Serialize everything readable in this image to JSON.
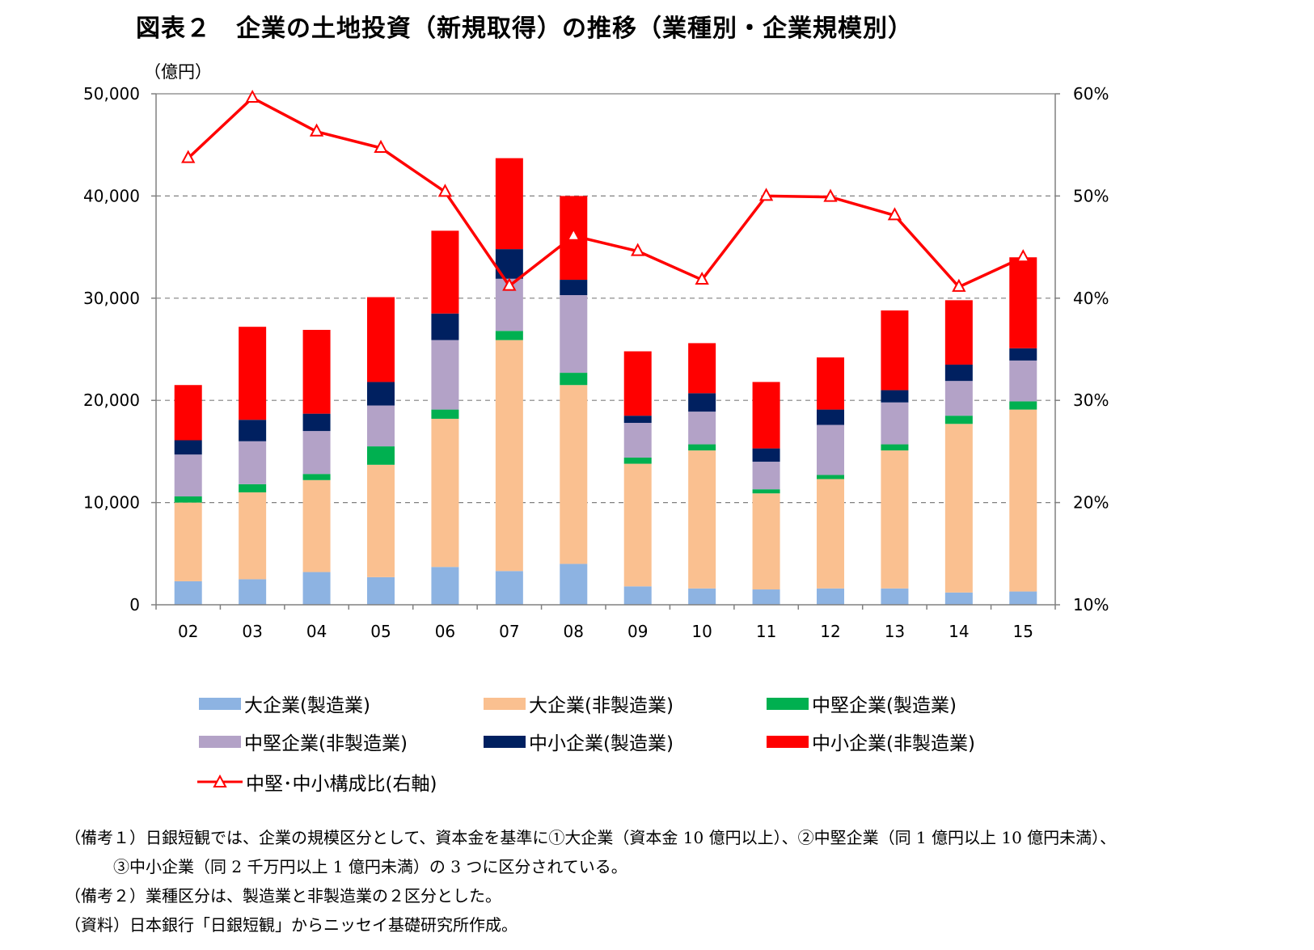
{
  "title": "図表２　企業の土地投資（新規取得）の推移（業種別・企業規模別）",
  "unit_label": "（億円）",
  "chart_data": {
    "type": "bar",
    "stacked": true,
    "categories": [
      "02",
      "03",
      "04",
      "05",
      "06",
      "07",
      "08",
      "09",
      "10",
      "11",
      "12",
      "13",
      "14",
      "15"
    ],
    "series": [
      {
        "name": "大企業(製造業)",
        "color": "#8db3e2",
        "values": [
          2300,
          2500,
          3200,
          2700,
          3700,
          3300,
          4000,
          1800,
          1600,
          1500,
          1600,
          1600,
          1200,
          1300
        ]
      },
      {
        "name": "大企業(非製造業)",
        "color": "#fac090",
        "values": [
          7700,
          8500,
          9000,
          11000,
          14500,
          22600,
          17500,
          12000,
          13500,
          9400,
          10700,
          13500,
          16500,
          17800
        ]
      },
      {
        "name": "中堅企業(製造業)",
        "color": "#00b050",
        "values": [
          600,
          800,
          600,
          1800,
          900,
          900,
          1200,
          600,
          600,
          400,
          400,
          600,
          800,
          800
        ]
      },
      {
        "name": "中堅企業(非製造業)",
        "color": "#b3a2c7",
        "values": [
          4100,
          4200,
          4200,
          4000,
          6800,
          5100,
          7600,
          3400,
          3200,
          2700,
          4900,
          4100,
          3400,
          4000
        ]
      },
      {
        "name": "中小企業(製造業)",
        "color": "#002060",
        "values": [
          1400,
          2100,
          1700,
          2300,
          2600,
          2900,
          1500,
          700,
          1800,
          1300,
          1500,
          1200,
          1600,
          1200
        ]
      },
      {
        "name": "中小企業(非製造業)",
        "color": "#ff0000",
        "values": [
          5400,
          9100,
          8200,
          8300,
          8100,
          8900,
          8200,
          6300,
          4900,
          6500,
          5100,
          7800,
          6300,
          8900
        ]
      }
    ],
    "line_series": {
      "name": "中堅･中小構成比(右軸)",
      "color": "#ff0000",
      "values": [
        53.7,
        59.6,
        56.3,
        54.7,
        50.4,
        41.2,
        46.1,
        44.6,
        41.8,
        50.0,
        49.9,
        48.1,
        41.1,
        44.0
      ]
    },
    "y_left": {
      "min": 0,
      "max": 50000,
      "ticks": [
        "0",
        "10,000",
        "20,000",
        "30,000",
        "40,000",
        "50,000"
      ]
    },
    "y_right": {
      "min": 10,
      "max": 60,
      "ticks": [
        "10%",
        "20%",
        "30%",
        "40%",
        "50%",
        "60%"
      ]
    },
    "grid": "dashed horizontal",
    "legend_position": "bottom"
  },
  "legend_items": [
    {
      "label": "大企業(製造業)",
      "color": "#8db3e2"
    },
    {
      "label": "大企業(非製造業)",
      "color": "#fac090"
    },
    {
      "label": "中堅企業(製造業)",
      "color": "#00b050"
    },
    {
      "label": "中堅企業(非製造業)",
      "color": "#b3a2c7"
    },
    {
      "label": "中小企業(製造業)",
      "color": "#002060"
    },
    {
      "label": "中小企業(非製造業)",
      "color": "#ff0000"
    },
    {
      "label": "中堅･中小構成比(右軸)",
      "color": "#ff0000"
    }
  ],
  "notes": {
    "note1_line1": "（備考１）日銀短観では、企業の規模区分として、資本金を基準に①大企業（資本金 10 億円以上）、②中堅企業（同 1 億円以上 10 億円未満）、",
    "note1_line2": "③中小企業（同 2 千万円以上 1 億円未満）の 3 つに区分されている。",
    "note2": "（備考２）業種区分は、製造業と非製造業の２区分とした。",
    "source": "（資料）日本銀行「日銀短観」からニッセイ基礎研究所作成。"
  }
}
